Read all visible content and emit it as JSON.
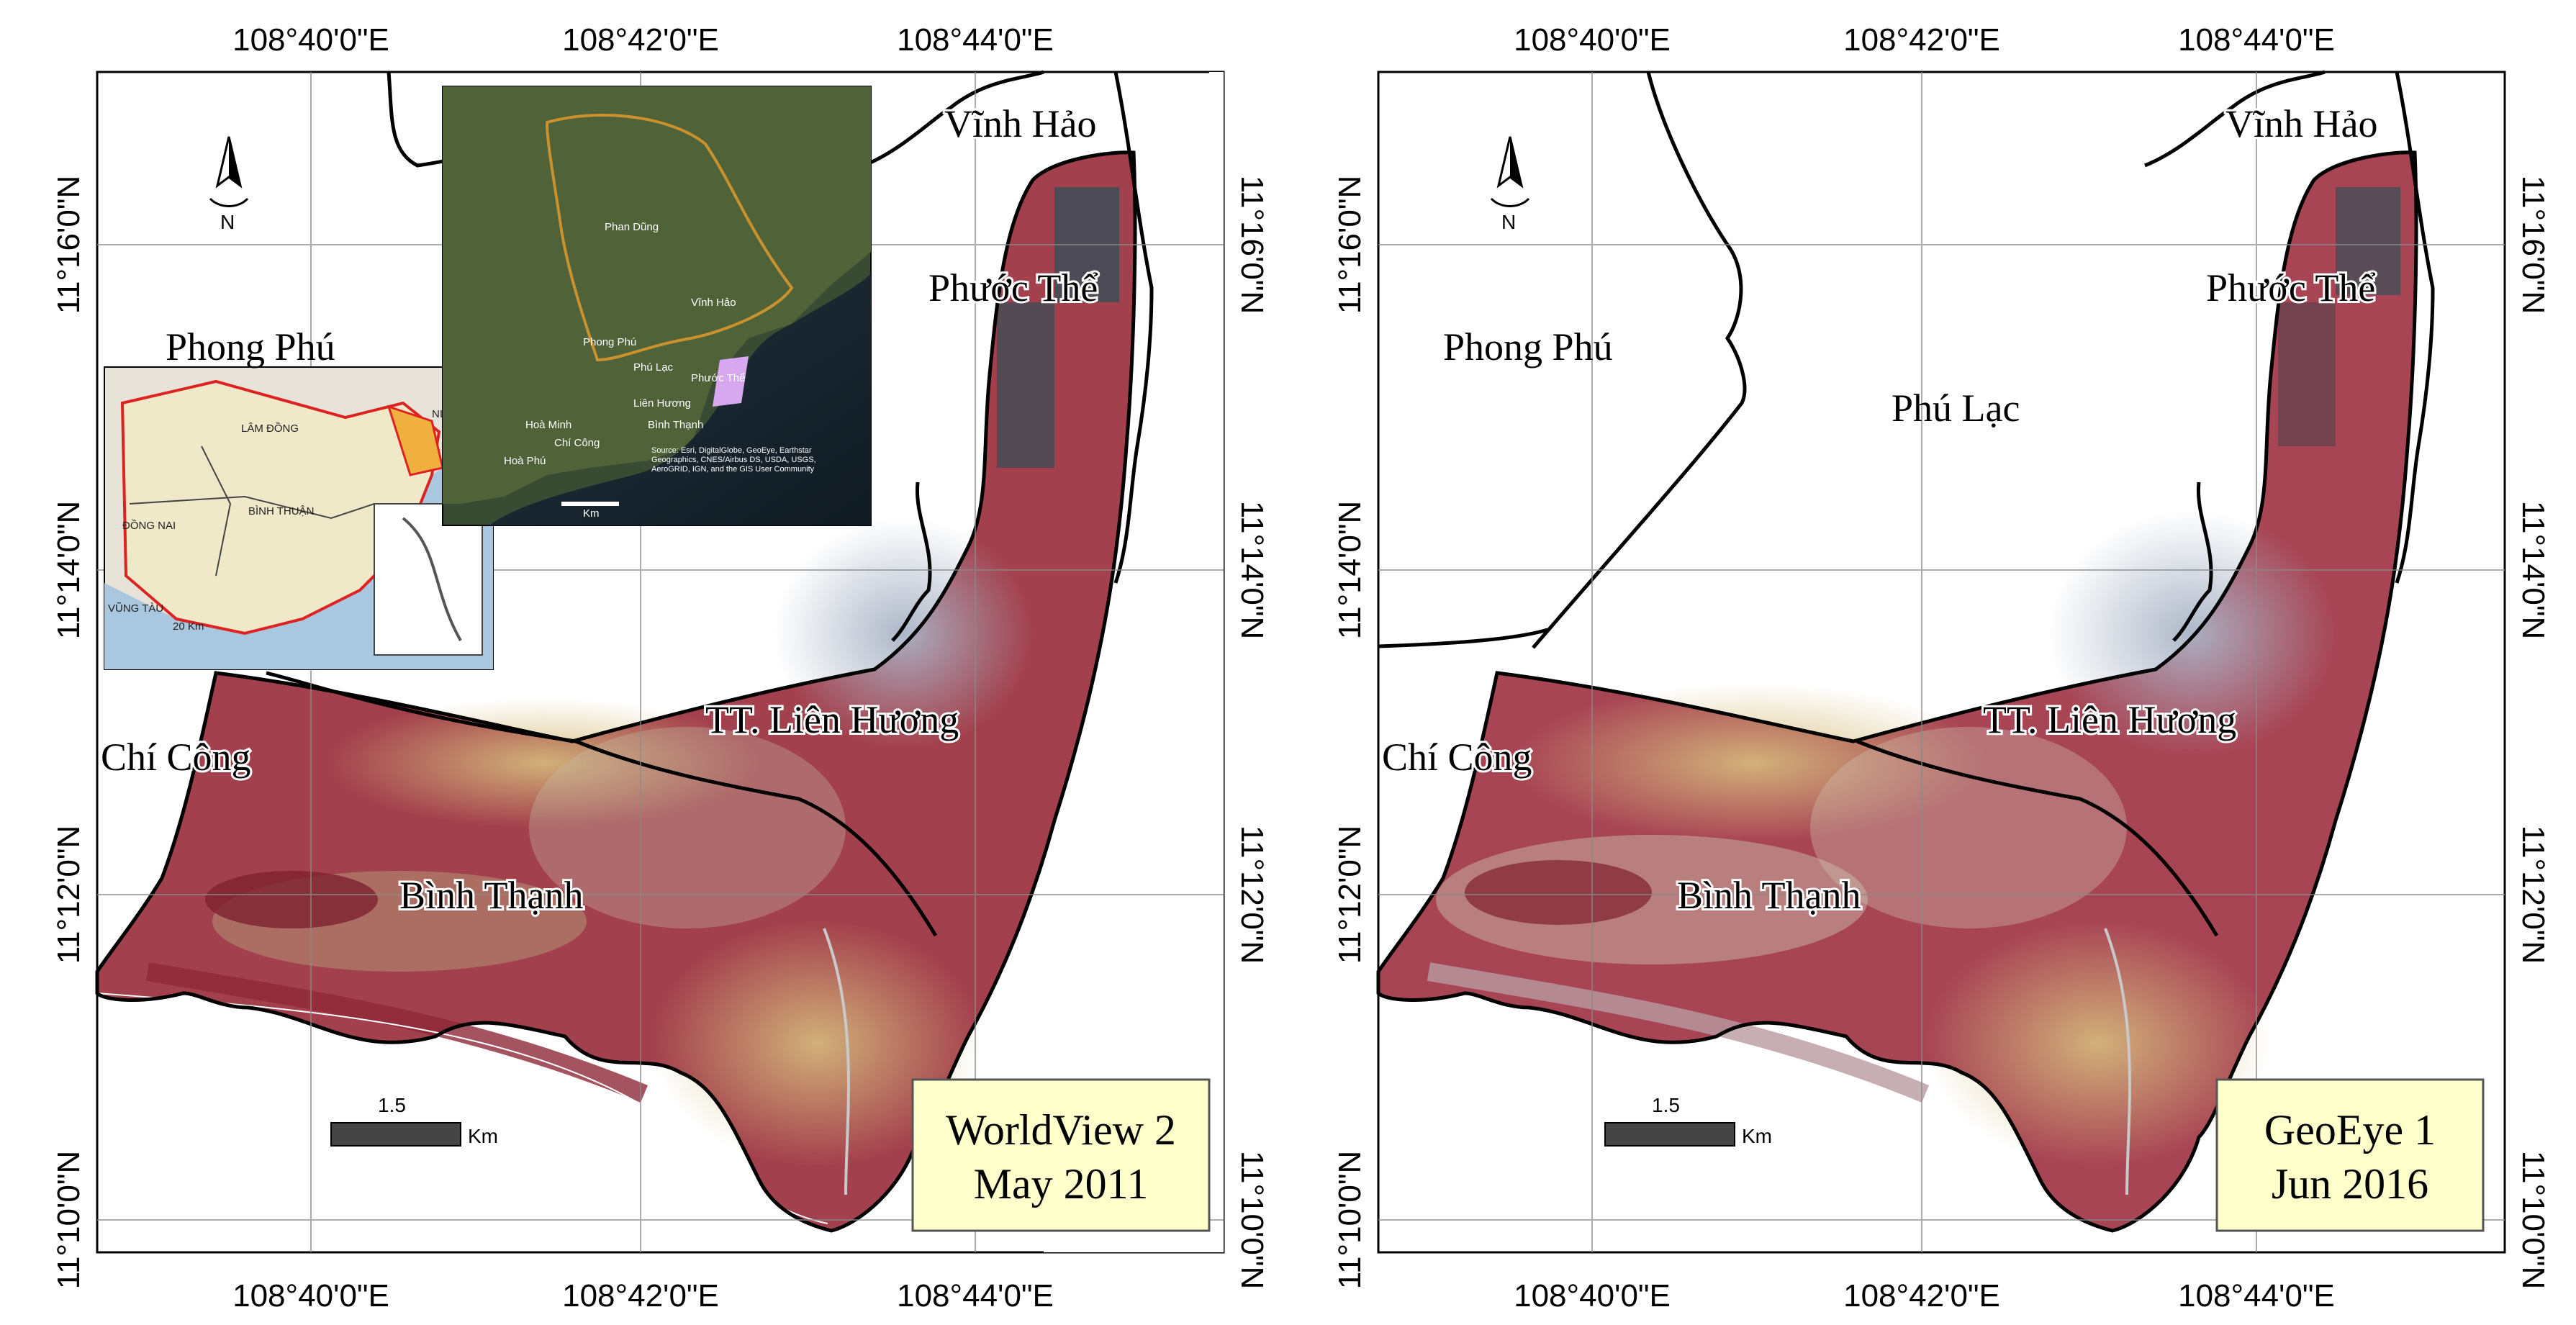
{
  "colors": {
    "land_red": "#a53a49",
    "land_tan": "#c8ad72",
    "urban": "#9aa6ba",
    "water": "#1c2c36",
    "label_box": "#ffffcc",
    "boundary": "#000000"
  },
  "icons": [
    "north-arrow-icon"
  ],
  "panels": [
    {
      "id": "left",
      "lon_labels": [
        "108°40'0\"E",
        "108°42'0\"E",
        "108°44'0\"E"
      ],
      "lat_labels": [
        "11°16'0\"N",
        "11°14'0\"N",
        "11°12'0\"N",
        "11°10'0\"N"
      ],
      "north_label": "N",
      "places": {
        "vinh_hao": "Vĩnh Hảo",
        "phuoc_the": "Phước Thể",
        "phong_phu": "Phong Phú",
        "chi_cong": "Chí Công",
        "lien_huong": "TT. Liên Hương",
        "binh_thanh": "Bình Thạnh"
      },
      "scale_bar": {
        "value": "1.5",
        "unit": "Km"
      },
      "sensor": {
        "line1": "WorldView 2",
        "line2": "May 2011"
      }
    },
    {
      "id": "right",
      "lon_labels": [
        "108°40'0\"E",
        "108°42'0\"E",
        "108°44'0\"E"
      ],
      "lat_labels": [
        "11°16'0\"N",
        "11°14'0\"N",
        "11°12'0\"N",
        "11°10'0\"N"
      ],
      "north_label": "N",
      "places": {
        "vinh_hao": "Vĩnh Hảo",
        "phuoc_the": "Phước Thể",
        "phong_phu": "Phong Phú",
        "phu_lac": "Phú Lạc",
        "chi_cong": "Chí Công",
        "lien_huong": "TT. Liên Hương",
        "binh_thanh": "Bình Thạnh"
      },
      "scale_bar": {
        "value": "1.5",
        "unit": "Km"
      },
      "sensor": {
        "line1": "GeoEye 1",
        "line2": "Jun 2016"
      }
    }
  ],
  "inset_province": {
    "labels": [
      "LÂM ĐỒNG",
      "NINH THUẬN",
      "ĐỒNG NAI",
      "BÌNH THUẬN",
      "VŨNG TÀU"
    ],
    "scale": "20 Km"
  },
  "inset_district": {
    "labels": [
      "Phan Dũng",
      "Phong Phú",
      "Vĩnh Hảo",
      "Phú Lạc",
      "Liên Hương",
      "Phước Thể",
      "Bình Thạnh",
      "Chí Công",
      "Hoà Minh",
      "Hoà Phú"
    ],
    "scale": "Km",
    "credit": "Source: Esri, DigitalGlobe, GeoEye, Earthstar Geographics, CNES/Airbus DS, USDA, USGS, AeroGRID, IGN, and the GIS User Community"
  }
}
